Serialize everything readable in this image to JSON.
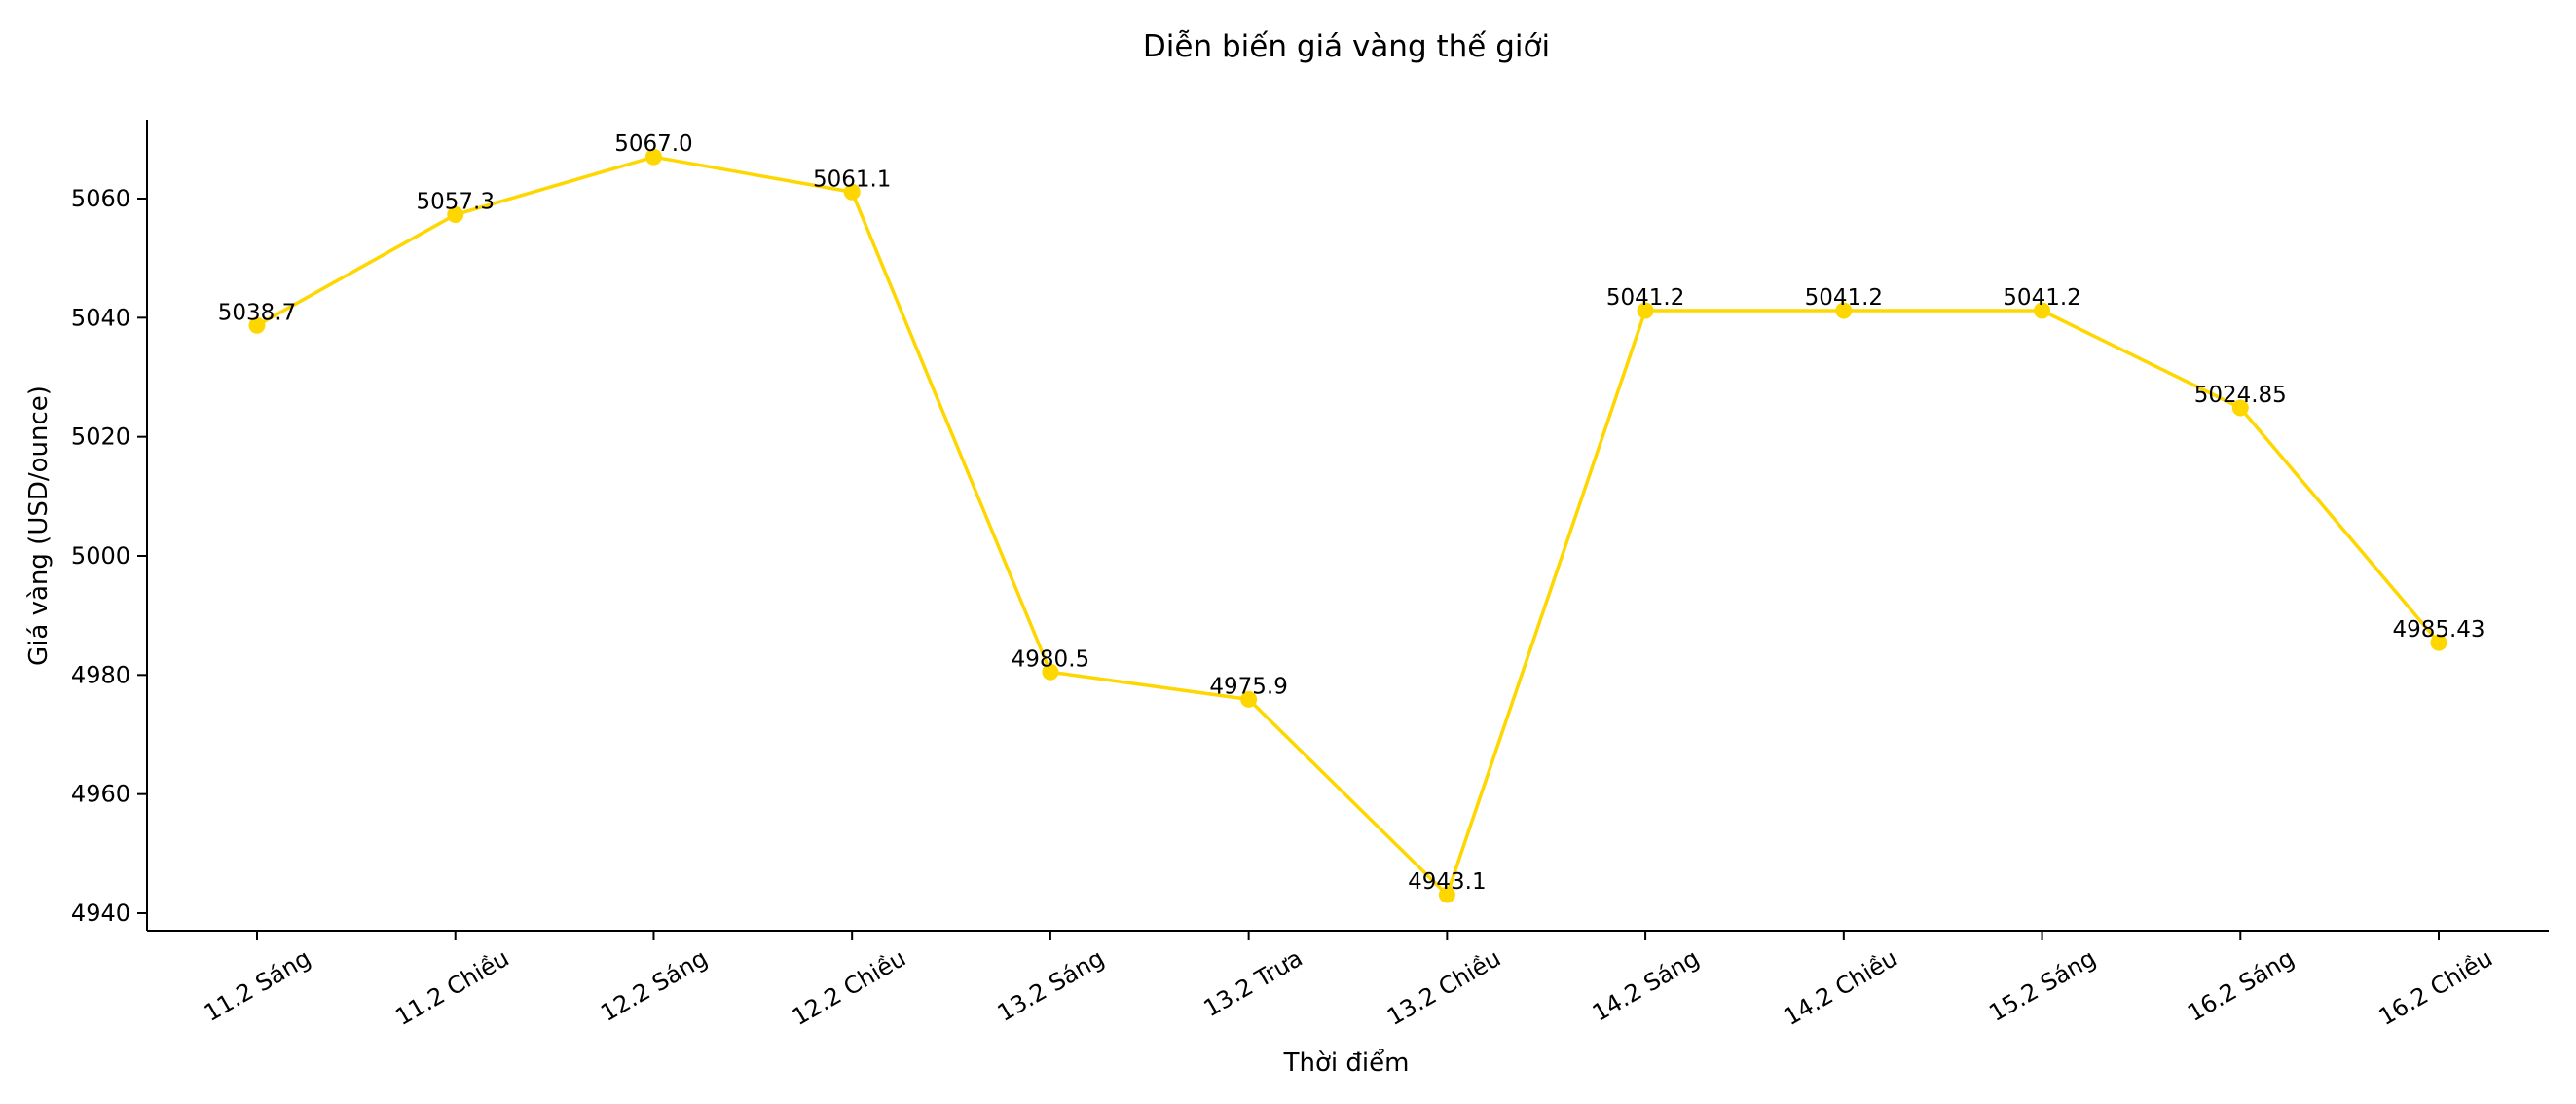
{
  "chart_data": {
    "type": "line",
    "title": "Diễn biến giá vàng thế giới",
    "xlabel": "Thời điểm",
    "ylabel": "Giá vàng (USD/ounce)",
    "categories": [
      "11.2 Sáng",
      "11.2 Chiều",
      "12.2 Sáng",
      "12.2 Chiều",
      "13.2 Sáng",
      "13.2 Trưa",
      "13.2 Chiều",
      "14.2 Sáng",
      "14.2 Chiều",
      "15.2 Sáng",
      "16.2 Sáng",
      "16.2 Chiều"
    ],
    "series": [
      {
        "values": [
          5038.7,
          5057.3,
          5067.0,
          5061.1,
          4980.5,
          4975.9,
          4943.1,
          5041.2,
          5041.2,
          5041.2,
          5024.85,
          4985.43
        ],
        "labels": [
          "5038.7",
          "5057.3",
          "5067.0",
          "5061.1",
          "4980.5",
          "4975.9",
          "4943.1",
          "5041.2",
          "5041.2",
          "5041.2",
          "5024.85",
          "4985.43"
        ],
        "color": "#FFD700"
      }
    ],
    "yticks": [
      4940,
      4960,
      4980,
      5000,
      5020,
      5040,
      5060
    ],
    "ytick_labels": [
      "4940",
      "4960",
      "4980",
      "5000",
      "5020",
      "5040",
      "5060"
    ],
    "ylim": [
      4940,
      5070
    ],
    "grid": false,
    "legend": "none"
  }
}
